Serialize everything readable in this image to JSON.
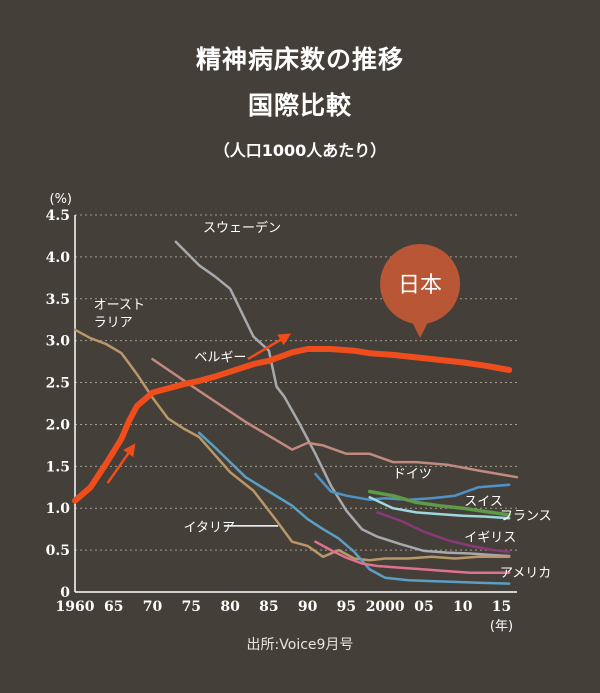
{
  "chart_data": {
    "type": "line",
    "title": "精神病床数の推移",
    "title_line2": "国際比較",
    "subtitle": "（人口1000人あたり）",
    "ylabel": "(%)",
    "x_unit_label": "(年)",
    "source": "出所:Voice9月号",
    "xlim": [
      1960,
      2017
    ],
    "ylim": [
      0,
      4.5
    ],
    "grid": true,
    "x_ticks": [
      {
        "value": 1960,
        "label": "1960"
      },
      {
        "value": 1965,
        "label": "65"
      },
      {
        "value": 1970,
        "label": "70"
      },
      {
        "value": 1975,
        "label": "75"
      },
      {
        "value": 1980,
        "label": "80"
      },
      {
        "value": 1985,
        "label": "85"
      },
      {
        "value": 1990,
        "label": "90"
      },
      {
        "value": 1995,
        "label": "95"
      },
      {
        "value": 2000,
        "label": "2000"
      },
      {
        "value": 2005,
        "label": "05"
      },
      {
        "value": 2010,
        "label": "10"
      },
      {
        "value": 2015,
        "label": "15"
      }
    ],
    "y_ticks": [
      {
        "value": 0,
        "label": "0"
      },
      {
        "value": 0.5,
        "label": "0.5"
      },
      {
        "value": 1.0,
        "label": "1.0"
      },
      {
        "value": 1.5,
        "label": "1.5"
      },
      {
        "value": 2.0,
        "label": "2.0"
      },
      {
        "value": 2.5,
        "label": "2.5"
      },
      {
        "value": 3.0,
        "label": "3.0"
      },
      {
        "value": 3.5,
        "label": "3.5"
      },
      {
        "value": 4.0,
        "label": "4.0"
      },
      {
        "value": 4.5,
        "label": "4.5"
      }
    ],
    "series": [
      {
        "name": "スウェーデン",
        "color": "#a7a9ad",
        "width": 2.5,
        "x": [
          1973,
          1976,
          1978,
          1980,
          1983,
          1985,
          1986,
          1987,
          1989,
          1991,
          1993,
          1995,
          1997,
          1999,
          2002,
          2005,
          2008,
          2011,
          2014,
          2016
        ],
        "y": [
          4.18,
          3.9,
          3.77,
          3.62,
          3.05,
          2.88,
          2.45,
          2.33,
          2.0,
          1.65,
          1.27,
          0.97,
          0.75,
          0.66,
          0.57,
          0.49,
          0.47,
          0.46,
          0.44,
          0.43
        ]
      },
      {
        "name": "日本",
        "color": "#ef4d1b",
        "width": 6,
        "x": [
          1960,
          1962,
          1964,
          1966,
          1967,
          1968,
          1970,
          1972,
          1974,
          1976,
          1978,
          1980,
          1983,
          1985,
          1988,
          1990,
          1993,
          1996,
          1998,
          2001,
          2004,
          2007,
          2010,
          2013,
          2016
        ],
        "y": [
          1.09,
          1.25,
          1.53,
          1.83,
          2.05,
          2.22,
          2.38,
          2.43,
          2.48,
          2.52,
          2.57,
          2.63,
          2.72,
          2.76,
          2.86,
          2.9,
          2.9,
          2.88,
          2.85,
          2.83,
          2.8,
          2.77,
          2.74,
          2.7,
          2.65
        ]
      },
      {
        "name": "オーストラリア",
        "color": "#b89868",
        "width": 2.5,
        "x": [
          1960,
          1962,
          1964,
          1966,
          1968,
          1970,
          1972,
          1974,
          1976,
          1978,
          1980,
          1983,
          1986,
          1988,
          1990,
          1992,
          1994,
          1996,
          1998,
          2000,
          2003,
          2006,
          2009,
          2012,
          2016
        ],
        "y": [
          3.13,
          3.03,
          2.96,
          2.85,
          2.6,
          2.32,
          2.07,
          1.95,
          1.85,
          1.64,
          1.43,
          1.21,
          0.85,
          0.6,
          0.55,
          0.42,
          0.5,
          0.4,
          0.38,
          0.4,
          0.4,
          0.42,
          0.4,
          0.42,
          0.42
        ]
      },
      {
        "name": "ベルギー",
        "color": "#c08a80",
        "width": 2.5,
        "x": [
          1970,
          1976,
          1982,
          1988,
          1990,
          1992,
          1995,
          1998,
          2001,
          2004,
          2008,
          2012,
          2017
        ],
        "y": [
          2.78,
          2.4,
          2.03,
          1.7,
          1.78,
          1.75,
          1.65,
          1.65,
          1.55,
          1.55,
          1.52,
          1.45,
          1.37
        ]
      },
      {
        "name": "イタリア",
        "color": "#5a9fc4",
        "width": 2.5,
        "x": [
          1976,
          1978,
          1980,
          1982,
          1985,
          1988,
          1990,
          1992,
          1994,
          1996,
          1998,
          2000,
          2003,
          2006,
          2009,
          2012,
          2016
        ],
        "y": [
          1.9,
          1.73,
          1.55,
          1.37,
          1.2,
          1.03,
          0.87,
          0.75,
          0.64,
          0.48,
          0.27,
          0.17,
          0.14,
          0.13,
          0.12,
          0.11,
          0.1
        ]
      },
      {
        "name": "ドイツ",
        "color": "#4d93c8",
        "width": 2.5,
        "x": [
          1991,
          1993,
          1995,
          1998,
          2000,
          2003,
          2006,
          2009,
          2012,
          2016
        ],
        "y": [
          1.41,
          1.2,
          1.15,
          1.1,
          1.12,
          1.1,
          1.12,
          1.15,
          1.25,
          1.28
        ]
      },
      {
        "name": "スイス",
        "color": "#5e9a48",
        "width": 3.5,
        "x": [
          1998,
          2001,
          2004,
          2007,
          2010,
          2013,
          2016
        ],
        "y": [
          1.2,
          1.15,
          1.07,
          1.03,
          1.0,
          0.96,
          0.92
        ]
      },
      {
        "name": "フランス",
        "color": "#9fd7df",
        "width": 2.5,
        "x": [
          1998,
          2001,
          2004,
          2007,
          2010,
          2013,
          2016
        ],
        "y": [
          1.13,
          1.0,
          0.95,
          0.93,
          0.91,
          0.9,
          0.88
        ]
      },
      {
        "name": "イギリス",
        "color": "#883a78",
        "width": 2.5,
        "x": [
          1999,
          2002,
          2005,
          2008,
          2011,
          2014,
          2016
        ],
        "y": [
          0.95,
          0.85,
          0.72,
          0.62,
          0.55,
          0.5,
          0.48
        ]
      },
      {
        "name": "アメリカ",
        "color": "#e07090",
        "width": 2.5,
        "x": [
          1991,
          1993,
          1995,
          1997,
          1999,
          2002,
          2005,
          2008,
          2011,
          2014,
          2016
        ],
        "y": [
          0.6,
          0.5,
          0.41,
          0.34,
          0.31,
          0.29,
          0.27,
          0.25,
          0.23,
          0.23,
          0.23
        ]
      }
    ],
    "annotations": [
      {
        "text": "スウェーデン",
        "series": "スウェーデン",
        "x": 1976.5,
        "y": 4.3,
        "color": "#ffffff"
      },
      {
        "text": "オースト",
        "series": "オーストラリア",
        "x": 1962.4,
        "y": 3.38,
        "color": "#ffffff"
      },
      {
        "text": "ラリア",
        "series": "オーストラリア",
        "x": 1962.4,
        "y": 3.17,
        "color": "#ffffff"
      },
      {
        "text": "ベルギー",
        "series": "ベルギー",
        "x": 1975.4,
        "y": 2.75,
        "color": "#ffffff"
      },
      {
        "text": "イタリア",
        "series": "イタリア",
        "x": 1974,
        "y": 0.72,
        "color": "#ffffff"
      },
      {
        "text": "ドイツ",
        "series": "ドイツ",
        "x": 2001,
        "y": 1.36,
        "color": "#ffffff"
      },
      {
        "text": "スイス",
        "series": "スイス",
        "x": 2010.2,
        "y": 1.03,
        "color": "#ffffff"
      },
      {
        "text": "フランス",
        "series": "フランス",
        "x": 2014.8,
        "y": 0.86,
        "color": "#ffffff"
      },
      {
        "text": "イギリス",
        "series": "イギリス",
        "x": 2010.2,
        "y": 0.6,
        "color": "#ffffff"
      },
      {
        "text": "アメリカ",
        "series": "アメリカ",
        "x": 2014.8,
        "y": 0.18,
        "color": "#ffffff"
      }
    ],
    "callout": {
      "text": "日本",
      "series": "日本",
      "fill": "#b85635"
    }
  }
}
